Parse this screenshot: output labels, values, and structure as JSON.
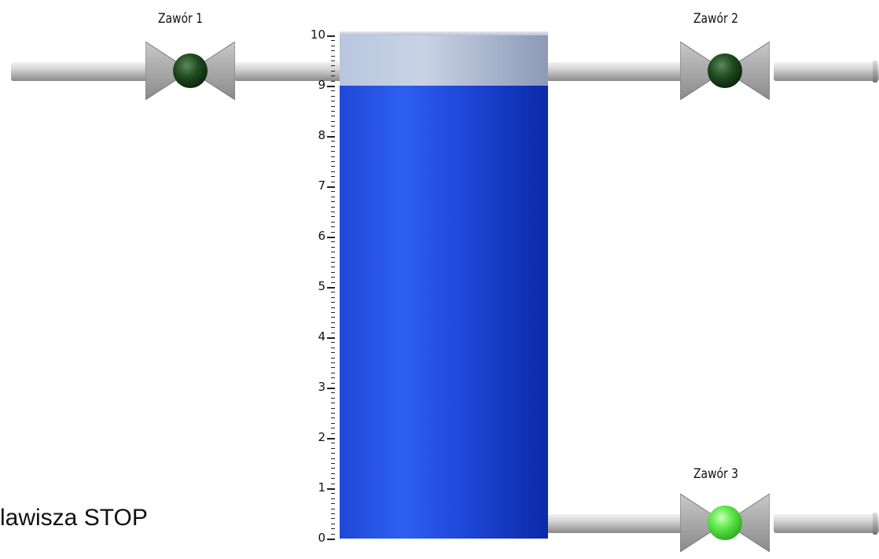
{
  "tank": {
    "level": 9,
    "scale_min": 0,
    "scale_max": 10,
    "tick_labels": [
      "0",
      "1",
      "2",
      "3",
      "4",
      "5",
      "6",
      "7",
      "8",
      "9",
      "10"
    ],
    "fill_color": "#1f48d6"
  },
  "valves": [
    {
      "label": "Zawór 1",
      "state": "off",
      "lamp_color": "#1f4a1f"
    },
    {
      "label": "Zawór 2",
      "state": "off",
      "lamp_color": "#1f4a1f"
    },
    {
      "label": "Zawór 3",
      "state": "on",
      "lamp_color": "#5ee84a"
    }
  ],
  "footer": {
    "text": "lawisza STOP"
  }
}
